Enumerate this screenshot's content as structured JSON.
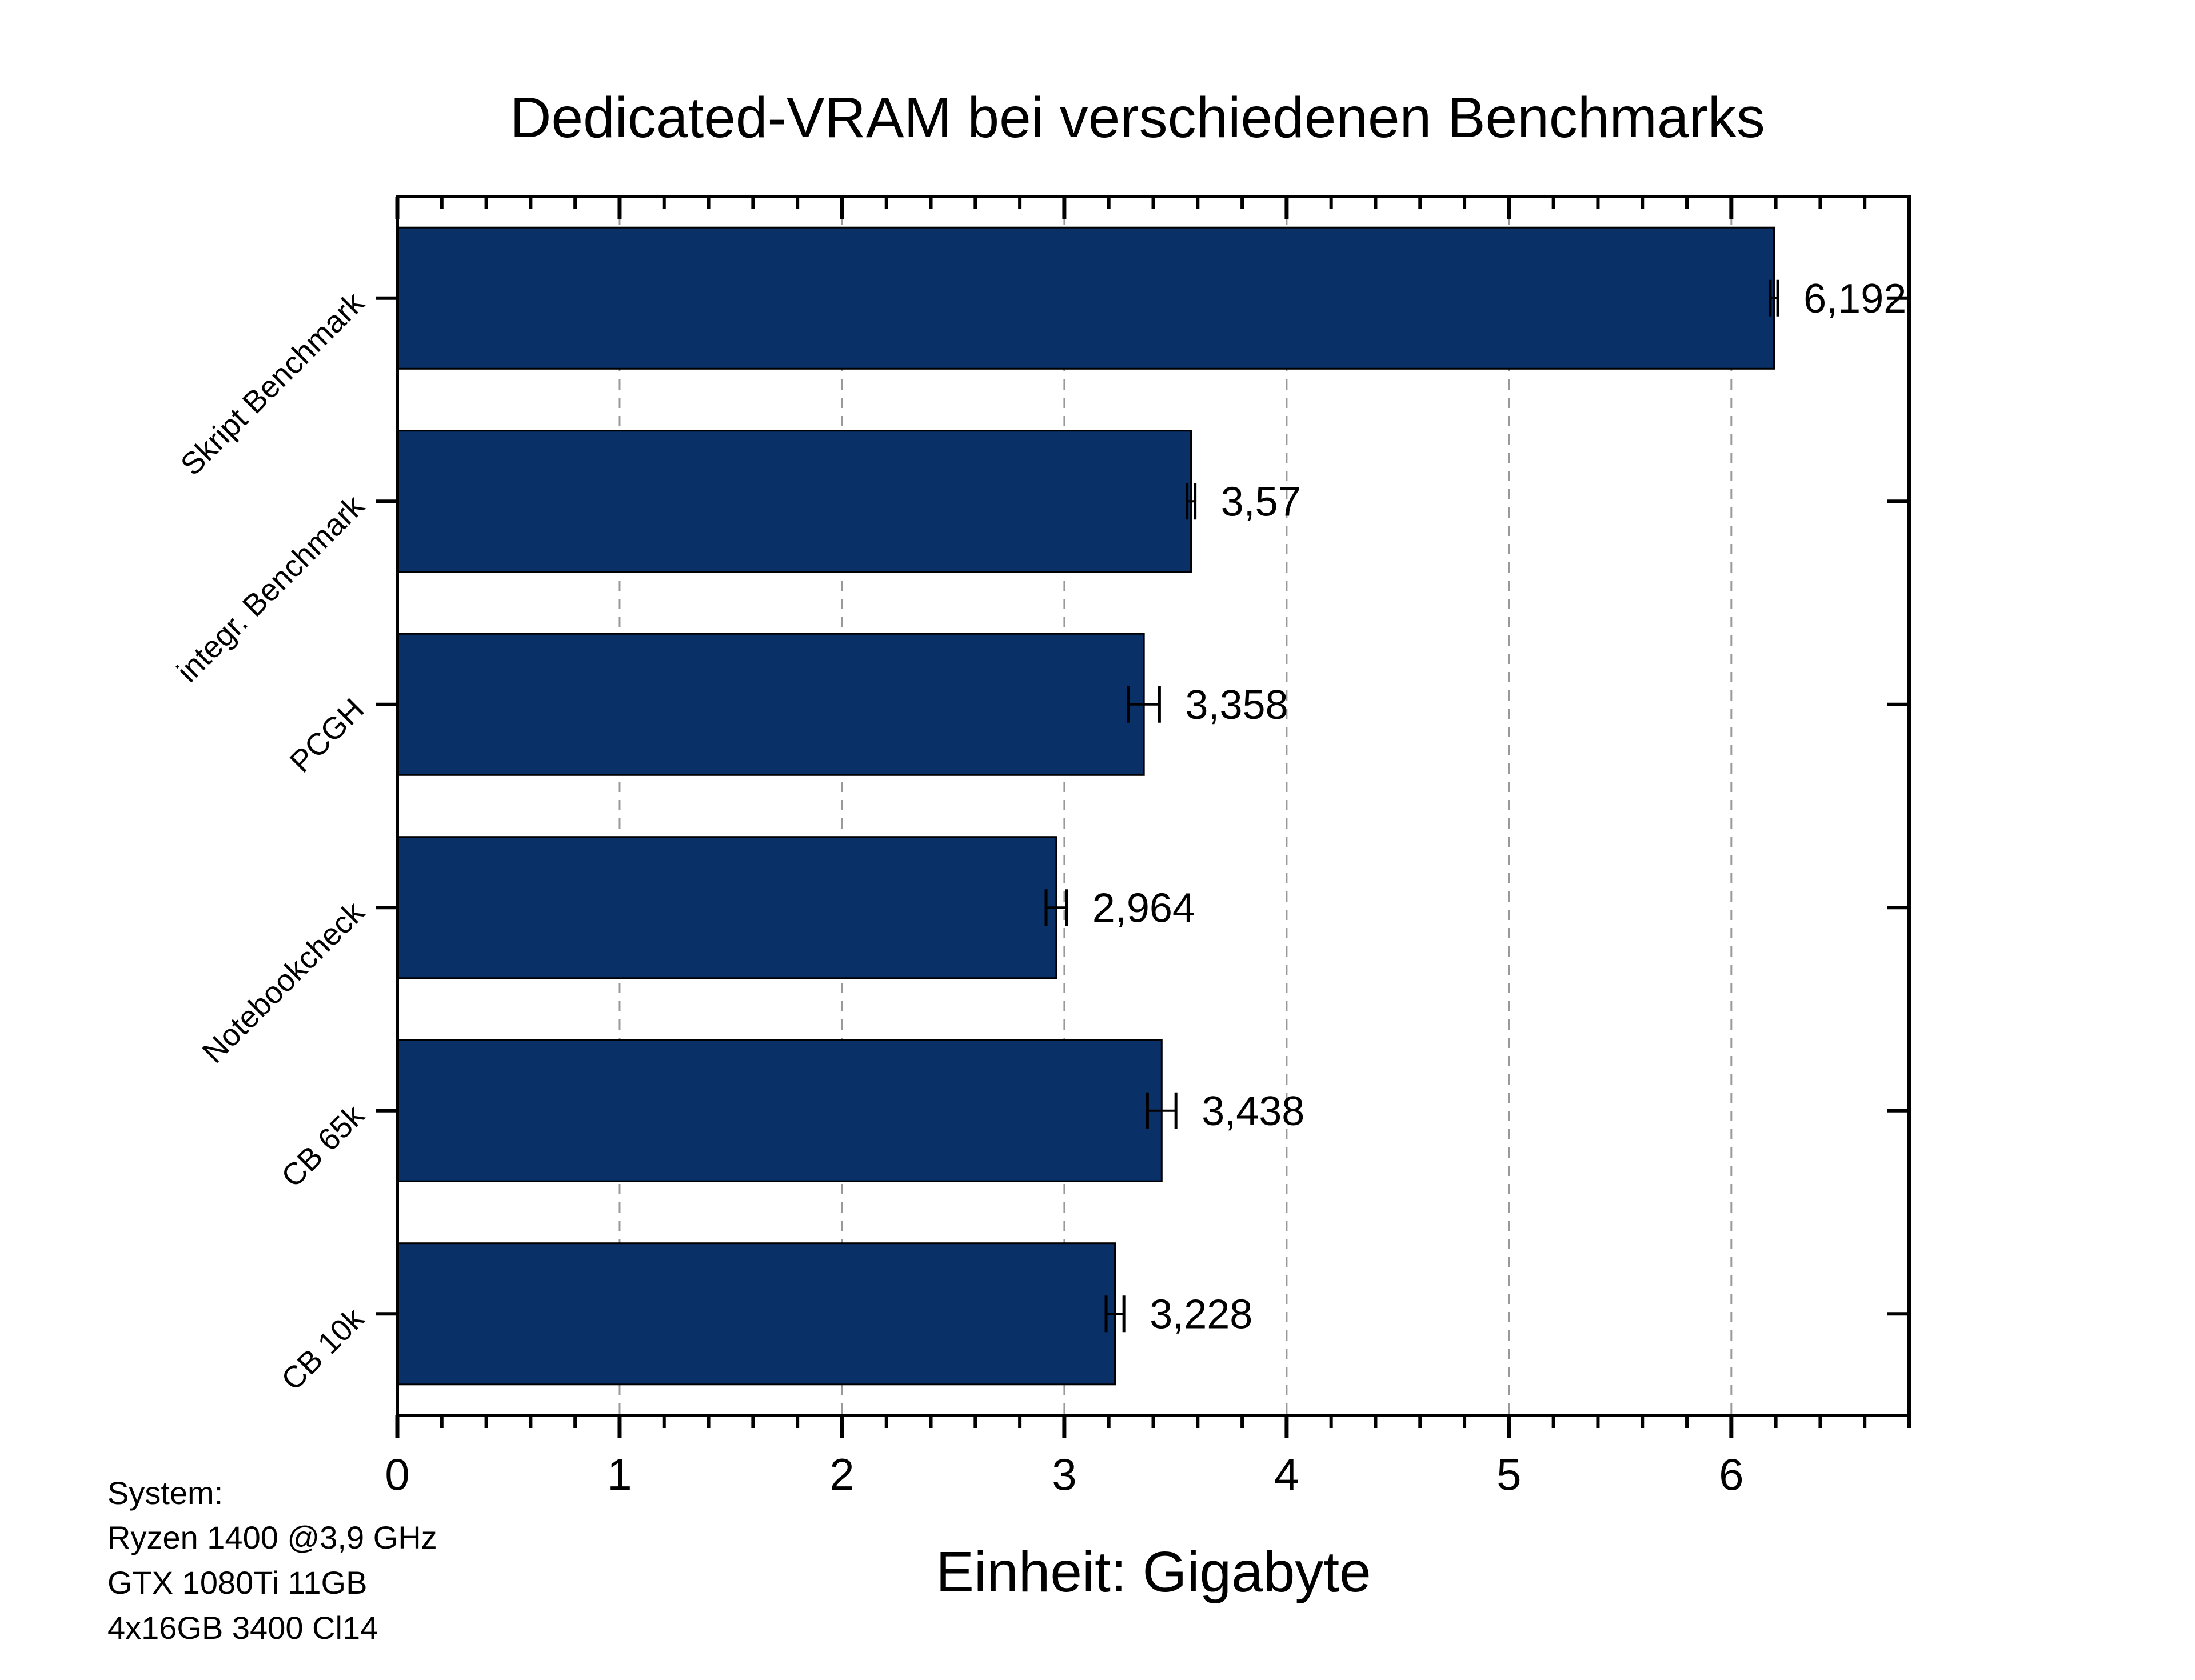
{
  "chart_data": {
    "type": "bar",
    "orientation": "horizontal",
    "title": "Dedicated-VRAM bei verschiedenen Benchmarks",
    "xlabel": "Einheit: Gigabyte",
    "ylabel": "",
    "categories": [
      "Skript Benchmark",
      "integr. Benchmark",
      "PCGH",
      "Notebookcheck",
      "CB 65k",
      "CB 10k"
    ],
    "values": [
      6.192,
      3.57,
      3.358,
      2.964,
      3.438,
      3.228
    ],
    "value_labels": [
      "6,192",
      "3,57",
      "3,358",
      "2,964",
      "3,438",
      "3,228"
    ],
    "errors": [
      0.017,
      0.018,
      0.07,
      0.046,
      0.064,
      0.04
    ],
    "xlim": [
      0,
      6.8
    ],
    "xticks": [
      0,
      1,
      2,
      3,
      4,
      5,
      6
    ],
    "xtick_labels": [
      "0",
      "1",
      "2",
      "3",
      "4",
      "5",
      "6"
    ],
    "grid": "vertical dashed",
    "bar_color": "#0a3068",
    "legend": "none"
  },
  "annotation": {
    "lines": [
      "System:",
      "Ryzen 1400 @3,9 GHz",
      "GTX 1080Ti 11GB",
      "4x16GB 3400 Cl14"
    ]
  }
}
